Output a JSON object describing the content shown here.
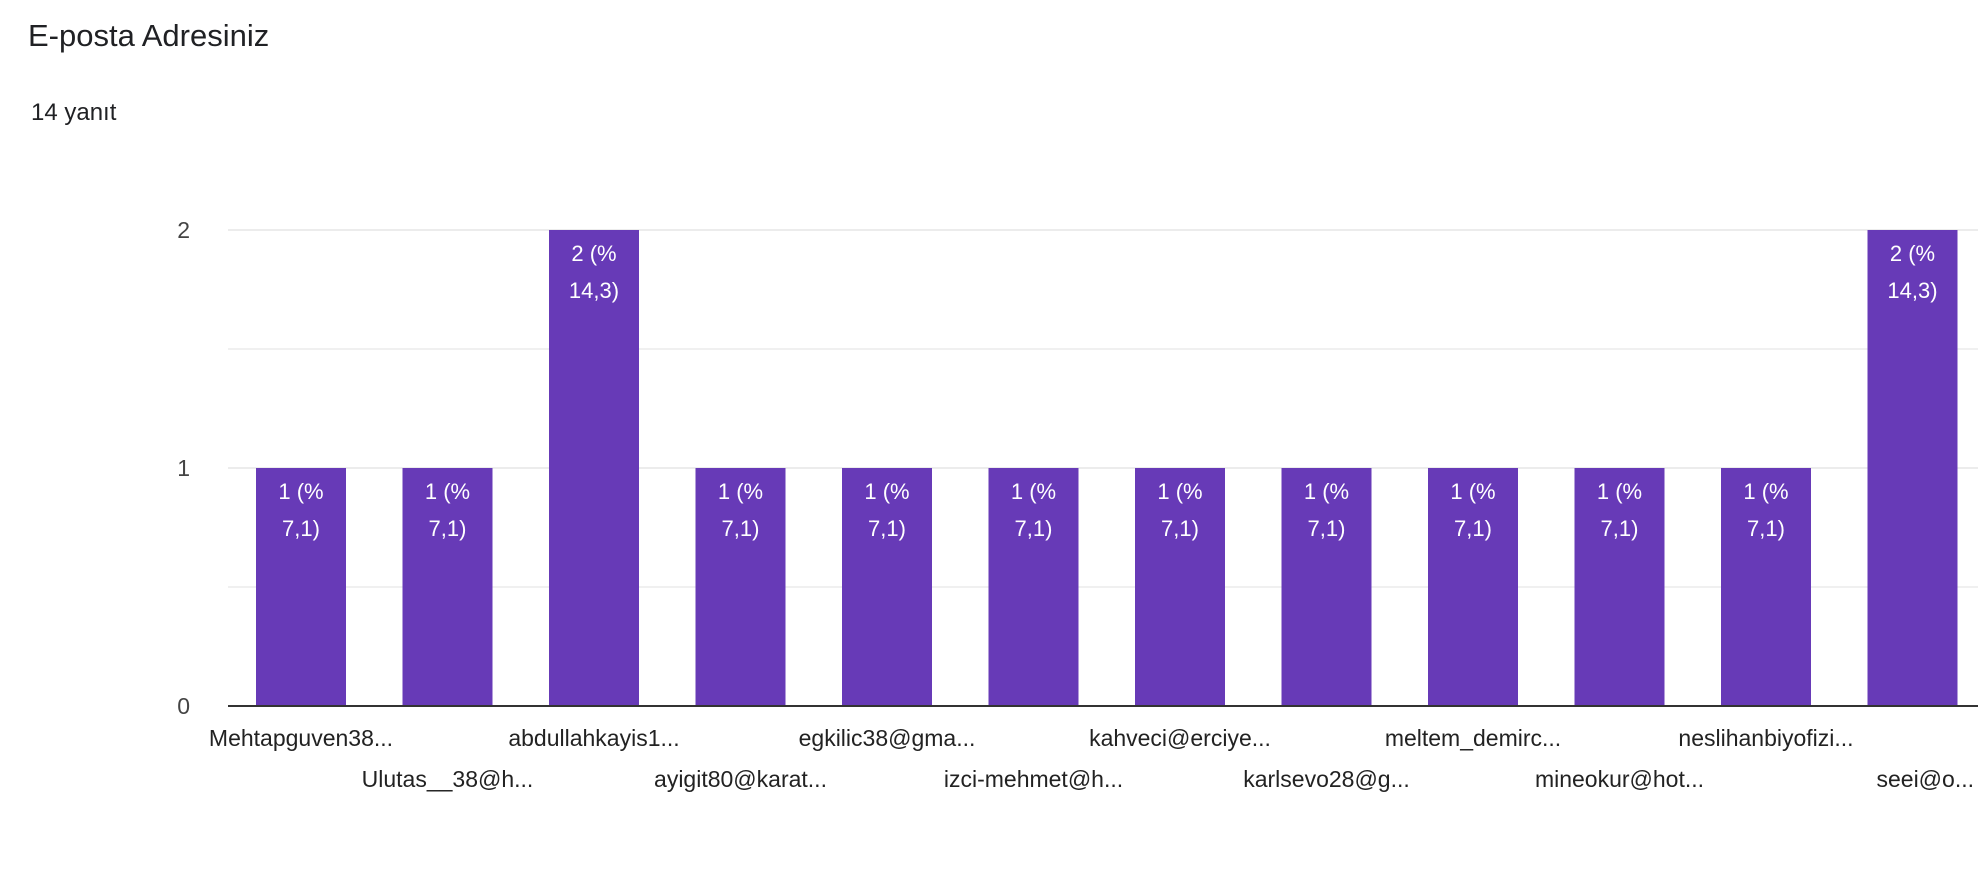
{
  "header": {
    "title": "E-posta Adresiniz",
    "response_count": "14 yanıt"
  },
  "colors": {
    "bar": "#673ab7",
    "grid": "#ececec",
    "axis": "#333333"
  },
  "chart_data": {
    "type": "bar",
    "title": "E-posta Adresiniz",
    "xlabel": "",
    "ylabel": "",
    "ylim": [
      0,
      2
    ],
    "yticks": [
      0,
      1,
      2
    ],
    "grid": true,
    "categories": [
      "Mehtapguven38...",
      "Ulutas__38@h...",
      "abdullahkayis1...",
      "ayigit80@karat...",
      "egkilic38@gma...",
      "izci-mehmet@h...",
      "kahveci@erciye...",
      "karlsevo28@g...",
      "meltem_demirc...",
      "mineokur@hot...",
      "neslihanbiyofizi...",
      "seei@o..."
    ],
    "values": [
      1,
      1,
      2,
      1,
      1,
      1,
      1,
      1,
      1,
      1,
      1,
      2
    ],
    "data_labels": [
      [
        "1 (%",
        "7,1)"
      ],
      [
        "1 (%",
        "7,1)"
      ],
      [
        "2 (%",
        "14,3)"
      ],
      [
        "1 (%",
        "7,1)"
      ],
      [
        "1 (%",
        "7,1)"
      ],
      [
        "1 (%",
        "7,1)"
      ],
      [
        "1 (%",
        "7,1)"
      ],
      [
        "1 (%",
        "7,1)"
      ],
      [
        "1 (%",
        "7,1)"
      ],
      [
        "1 (%",
        "7,1)"
      ],
      [
        "1 (%",
        "7,1)"
      ],
      [
        "2 (%",
        "14,3)"
      ]
    ]
  }
}
